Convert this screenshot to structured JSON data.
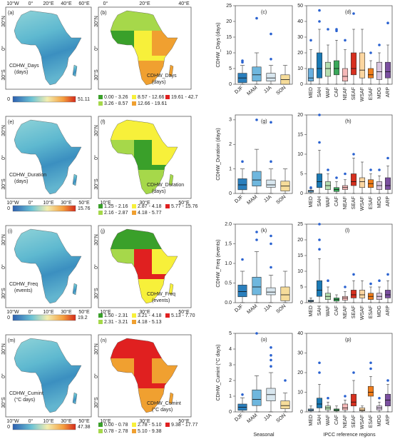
{
  "chart_data": [
    {
      "type": "map",
      "label": "(a)",
      "map_label": "CDHW_Days",
      "unit": "(days)",
      "colorbar_min": 0,
      "colorbar_max": 51.11,
      "lon_labels": [
        "10°W",
        "0°",
        "20°E",
        "40°E",
        "60°E"
      ],
      "lon_side": "top",
      "lat_labels": [
        "30°N",
        "0°",
        "30°S"
      ]
    },
    {
      "type": "choropleth",
      "label": "(b)",
      "map_label": "CDHW_Days",
      "unit": "(days)",
      "lon_labels": [
        "0°",
        "20°E",
        "40°E"
      ],
      "lon_side": "top",
      "lat_labels": [
        "30°N",
        "0°",
        "30°S"
      ],
      "legend": {
        "labels": [
          "0.00 - 3.26",
          "3.26 - 8.57",
          "8.57 - 12.66",
          "12.66 - 19.61",
          "19.61 - 42.7"
        ],
        "colors": [
          "#3aa02a",
          "#a6d84a",
          "#f7f03a",
          "#f0a030",
          "#e02020"
        ]
      }
    },
    {
      "type": "box",
      "label": "(c)",
      "ylabel": "CDHW_Days (days)",
      "categories": [
        "DJF",
        "MAM",
        "JJA",
        "SON"
      ],
      "colors": [
        "#2a7fbd",
        "#6fb7de",
        "#d8e6ee",
        "#f6dc9a"
      ],
      "ylim": [
        0,
        25
      ],
      "yticks": [
        0,
        5,
        10,
        15,
        20,
        25
      ],
      "boxes": [
        {
          "whislo": 0,
          "q1": 0.5,
          "med": 2,
          "q3": 3.5,
          "whishi": 6,
          "fliers": [
            7,
            7.5
          ]
        },
        {
          "whislo": 0,
          "q1": 1,
          "med": 3,
          "q3": 5.5,
          "whishi": 10,
          "fliers": [
            21
          ]
        },
        {
          "whislo": 0,
          "q1": 1,
          "med": 2,
          "q3": 3.5,
          "whishi": 6,
          "fliers": [
            8,
            16
          ]
        },
        {
          "whislo": 0,
          "q1": 0,
          "med": 1.5,
          "q3": 3,
          "whishi": 6,
          "fliers": []
        }
      ]
    },
    {
      "type": "box",
      "label": "(d)",
      "categories": [
        "MED",
        "SAH",
        "WAF",
        "CAF",
        "NEAF",
        "SEAF",
        "WSAF",
        "ESAF",
        "MDG",
        "ARP"
      ],
      "colors": [
        "#6ab0e0",
        "#1a7ab5",
        "#b5deb0",
        "#3aa85a",
        "#f5b8b8",
        "#d7301f",
        "#fcd6a0",
        "#f07c1a",
        "#d9c6e0",
        "#7b4fa0"
      ],
      "ylim": [
        0,
        50
      ],
      "yticks": [
        0,
        10,
        20,
        30,
        40,
        50
      ],
      "boxes": [
        {
          "whislo": 0,
          "q1": 2,
          "med": 4,
          "q3": 10,
          "whishi": 22,
          "fliers": [
            28
          ]
        },
        {
          "whislo": 0,
          "q1": 4,
          "med": 10,
          "q3": 20,
          "whishi": 35,
          "fliers": [
            40,
            47
          ]
        },
        {
          "whislo": 0,
          "q1": 5,
          "med": 10,
          "q3": 14,
          "whishi": 25,
          "fliers": [
            35
          ]
        },
        {
          "whislo": 0,
          "q1": 6,
          "med": 10,
          "q3": 15,
          "whishi": 28,
          "fliers": [
            34,
            35
          ]
        },
        {
          "whislo": 0,
          "q1": 2,
          "med": 5,
          "q3": 10,
          "whishi": 22,
          "fliers": [
            28
          ]
        },
        {
          "whislo": 0,
          "q1": 6,
          "med": 10,
          "q3": 20,
          "whishi": 35,
          "fliers": [
            45
          ]
        },
        {
          "whislo": 0,
          "q1": 4,
          "med": 9,
          "q3": 20,
          "whishi": 35,
          "fliers": []
        },
        {
          "whislo": 0,
          "q1": 4,
          "med": 6,
          "q3": 10,
          "whishi": 15,
          "fliers": [
            20
          ]
        },
        {
          "whislo": 0,
          "q1": 3,
          "med": 8,
          "q3": 14,
          "whishi": 20,
          "fliers": [
            25
          ]
        },
        {
          "whislo": 0,
          "q1": 4,
          "med": 8,
          "q3": 14,
          "whishi": 25,
          "fliers": [
            39
          ]
        }
      ]
    },
    {
      "type": "map",
      "label": "(e)",
      "map_label": "CDHW_Duration",
      "unit": "(days)",
      "colorbar_min": 0,
      "colorbar_max": 15.76,
      "lon_labels": [
        "10°W",
        "0°",
        "10°E",
        "30°E",
        "50°E"
      ],
      "lon_side": "bottom",
      "lat_labels": [
        "30°N",
        "0°",
        "30°S"
      ]
    },
    {
      "type": "choropleth",
      "label": "(f)",
      "map_label": "CDHW_Duration",
      "unit": "(days)",
      "lon_labels": [
        "10°E",
        "30°E",
        "50°E"
      ],
      "lon_side": "bottom",
      "lat_labels": [
        "30°N",
        "0°",
        "30°S"
      ],
      "legend": {
        "labels": [
          "1.25 - 2.16",
          "2.16 - 2.87",
          "2.87 - 4.18",
          "4.18 - 5.77",
          "5.77 - 15.76"
        ],
        "colors": [
          "#3aa02a",
          "#a6d84a",
          "#f7f03a",
          "#f0a030",
          "#e02020"
        ]
      }
    },
    {
      "type": "box",
      "label": "(g)",
      "ylabel": "CDHW_Duration (days)",
      "categories": [
        "DJF",
        "MAM",
        "JJA",
        "SON"
      ],
      "colors": [
        "#2a7fbd",
        "#6fb7de",
        "#d8e6ee",
        "#f6dc9a"
      ],
      "ylim": [
        0,
        3.2
      ],
      "yticks": [
        0,
        1,
        2,
        3
      ],
      "boxes": [
        {
          "whislo": 0,
          "q1": 0.15,
          "med": 0.35,
          "q3": 0.6,
          "whishi": 1,
          "fliers": [
            1.3
          ]
        },
        {
          "whislo": 0,
          "q1": 0.3,
          "med": 0.55,
          "q3": 0.9,
          "whishi": 1.8,
          "fliers": [
            3
          ]
        },
        {
          "whislo": 0,
          "q1": 0.25,
          "med": 0.35,
          "q3": 0.55,
          "whishi": 1,
          "fliers": [
            1.3,
            2.9
          ]
        },
        {
          "whislo": 0,
          "q1": 0.1,
          "med": 0.3,
          "q3": 0.5,
          "whishi": 1,
          "fliers": []
        }
      ]
    },
    {
      "type": "box",
      "label": "(h)",
      "categories": [
        "MED",
        "SAH",
        "WAF",
        "CAF",
        "NEAF",
        "SEAF",
        "WSAF",
        "ESAF",
        "MDG",
        "ARP"
      ],
      "colors": [
        "#6ab0e0",
        "#1a7ab5",
        "#b5deb0",
        "#3aa85a",
        "#f5b8b8",
        "#d7301f",
        "#fcd6a0",
        "#f07c1a",
        "#d9c6e0",
        "#7b4fa0"
      ],
      "ylim": [
        0,
        20
      ],
      "yticks": [
        0,
        5,
        10,
        15,
        20
      ],
      "boxes": [
        {
          "whislo": 0,
          "q1": 0.3,
          "med": 0.6,
          "q3": 0.8,
          "whishi": 1.2,
          "fliers": [
            1.5
          ]
        },
        {
          "whislo": 0,
          "q1": 1.5,
          "med": 3,
          "q3": 5,
          "whishi": 11,
          "fliers": [
            13,
            20
          ]
        },
        {
          "whislo": 0,
          "q1": 1,
          "med": 2,
          "q3": 3,
          "whishi": 5,
          "fliers": [
            6
          ]
        },
        {
          "whislo": 0,
          "q1": 0.5,
          "med": 1,
          "q3": 1.5,
          "whishi": 3,
          "fliers": [
            4
          ]
        },
        {
          "whislo": 0,
          "q1": 1,
          "med": 1.5,
          "q3": 2,
          "whishi": 3.5,
          "fliers": [
            5
          ]
        },
        {
          "whislo": 0,
          "q1": 2,
          "med": 3,
          "q3": 5,
          "whishi": 9,
          "fliers": [
            10
          ]
        },
        {
          "whislo": 0,
          "q1": 1.5,
          "med": 3,
          "q3": 4,
          "whishi": 8,
          "fliers": []
        },
        {
          "whislo": 0,
          "q1": 1.5,
          "med": 2.5,
          "q3": 3.5,
          "whishi": 5,
          "fliers": [
            6
          ]
        },
        {
          "whislo": 0,
          "q1": 1,
          "med": 2,
          "q3": 3,
          "whishi": 4.5,
          "fliers": [
            6
          ]
        },
        {
          "whislo": 0,
          "q1": 1,
          "med": 2,
          "q3": 4,
          "whishi": 7,
          "fliers": [
            9
          ]
        }
      ]
    },
    {
      "type": "map",
      "label": "(i)",
      "map_label": "CDHW_Freq",
      "unit": "(events)",
      "colorbar_min": 0,
      "colorbar_max": 19.2,
      "lon_labels": [
        "10°W",
        "0°",
        "10°E",
        "30°E",
        "50°E"
      ],
      "lon_side": "bottom",
      "lat_labels": [
        "30°N",
        "0°",
        "30°S"
      ]
    },
    {
      "type": "choropleth",
      "label": "(j)",
      "map_label": "CDHW_Freq",
      "unit": "(events)",
      "lon_labels": [
        "10°E",
        "30°E",
        "50°E"
      ],
      "lon_side": "bottom",
      "lat_labels": [
        "30°N",
        "0°",
        "30°S"
      ],
      "legend": {
        "labels": [
          "1.50 - 2.31",
          "2.31 - 3.21",
          "3.21 - 4.18",
          "4.18 - 5.13",
          "5.13 - 7.70"
        ],
        "colors": [
          "#3aa02a",
          "#a6d84a",
          "#f7f03a",
          "#f0a030",
          "#e02020"
        ]
      }
    },
    {
      "type": "box",
      "label": "(k)",
      "ylabel": "CDHW_Freq (events)",
      "categories": [
        "DJF",
        "MAM",
        "JJA",
        "SON"
      ],
      "colors": [
        "#2a7fbd",
        "#6fb7de",
        "#d8e6ee",
        "#f6dc9a"
      ],
      "ylim": [
        0,
        2
      ],
      "yticks": [
        {
          "value": 0,
          "label": "0.0"
        },
        0.5,
        {
          "value": 1,
          "label": "1.0"
        },
        1.5,
        {
          "value": 2,
          "label": "2.0"
        }
      ],
      "boxes": [
        {
          "whislo": 0,
          "q1": 0.15,
          "med": 0.28,
          "q3": 0.45,
          "whishi": 0.8,
          "fliers": [
            1.1
          ]
        },
        {
          "whislo": 0,
          "q1": 0.2,
          "med": 0.4,
          "q3": 0.65,
          "whishi": 1.3,
          "fliers": [
            1.6,
            1.8
          ]
        },
        {
          "whislo": 0,
          "q1": 0.2,
          "med": 0.27,
          "q3": 0.38,
          "whishi": 0.7,
          "fliers": [
            0.9,
            1.5,
            1.7
          ]
        },
        {
          "whislo": 0,
          "q1": 0.05,
          "med": 0.2,
          "q3": 0.4,
          "whishi": 0.8,
          "fliers": []
        }
      ]
    },
    {
      "type": "box",
      "label": "(l)",
      "categories": [
        "MED",
        "SAH",
        "WAF",
        "CAF",
        "NEAF",
        "SEAF",
        "WSAF",
        "ESAF",
        "MDG",
        "ARP"
      ],
      "colors": [
        "#6ab0e0",
        "#1a7ab5",
        "#b5deb0",
        "#3aa85a",
        "#f5b8b8",
        "#d7301f",
        "#fcd6a0",
        "#f07c1a",
        "#d9c6e0",
        "#7b4fa0"
      ],
      "ylim": [
        0,
        25
      ],
      "yticks": [
        0,
        5,
        10,
        15,
        20,
        25
      ],
      "boxes": [
        {
          "whislo": 0,
          "q1": 0.3,
          "med": 0.5,
          "q3": 0.8,
          "whishi": 1.5,
          "fliers": []
        },
        {
          "whislo": 0,
          "q1": 2,
          "med": 4,
          "q3": 7,
          "whishi": 14,
          "fliers": [
            17,
            20,
            25
          ]
        },
        {
          "whislo": 0,
          "q1": 1,
          "med": 2,
          "q3": 3,
          "whishi": 5,
          "fliers": [
            7
          ]
        },
        {
          "whislo": 0,
          "q1": 0.5,
          "med": 1,
          "q3": 1.5,
          "whishi": 2.5,
          "fliers": []
        },
        {
          "whislo": 0,
          "q1": 0.8,
          "med": 1.5,
          "q3": 2,
          "whishi": 3.5,
          "fliers": [
            5
          ]
        },
        {
          "whislo": 0,
          "q1": 1.5,
          "med": 2.5,
          "q3": 4,
          "whishi": 7,
          "fliers": [
            9
          ]
        },
        {
          "whislo": 0,
          "q1": 1.5,
          "med": 2.5,
          "q3": 4,
          "whishi": 7,
          "fliers": []
        },
        {
          "whislo": 0,
          "q1": 1,
          "med": 2,
          "q3": 3,
          "whishi": 5,
          "fliers": [
            6
          ]
        },
        {
          "whislo": 0,
          "q1": 1,
          "med": 2,
          "q3": 3,
          "whishi": 5,
          "fliers": [
            7
          ]
        },
        {
          "whislo": 0,
          "q1": 1.5,
          "med": 2.5,
          "q3": 4,
          "whishi": 7,
          "fliers": [
            9
          ]
        }
      ]
    },
    {
      "type": "map",
      "label": "(m)",
      "map_label": "CDHW_Cumint",
      "unit": "(°C days)",
      "colorbar_min": 0,
      "colorbar_max": 47.38,
      "lon_labels": [
        "10°W",
        "0°",
        "10°E",
        "30°E",
        "50°E"
      ],
      "lon_side": "bottom",
      "lat_labels": [
        "30°N",
        "0°",
        "30°S"
      ]
    },
    {
      "type": "choropleth",
      "label": "(n)",
      "map_label": "CDHW_Cumint",
      "unit": "(°C days)",
      "lon_labels": [
        "10°E",
        "30°E",
        "50°E"
      ],
      "lon_side": "bottom",
      "lat_labels": [
        "30°N",
        "0°",
        "30°S"
      ],
      "legend": {
        "labels": [
          "0.00 - 0.78",
          "0.78 - 2.78",
          "2.78 - 5.10",
          "5.10 - 9.38",
          "9.38 - 17.77"
        ],
        "colors": [
          "#3aa02a",
          "#a6d84a",
          "#f7f03a",
          "#f0a030",
          "#e02020"
        ]
      }
    },
    {
      "type": "box",
      "label": "(o)",
      "ylabel": "CDHW_Cumint (°C days)",
      "xlabel": "Seasonal",
      "categories": [
        "DJF",
        "MAM",
        "JJA",
        "SON"
      ],
      "colors": [
        "#2a7fbd",
        "#6fb7de",
        "#d8e6ee",
        "#f6dc9a"
      ],
      "ylim": [
        0,
        5
      ],
      "yticks": [
        0,
        1,
        2,
        3,
        4,
        5
      ],
      "boxes": [
        {
          "whislo": 0,
          "q1": 0.1,
          "med": 0.3,
          "q3": 0.5,
          "whishi": 0.9,
          "fliers": [
            1.1
          ]
        },
        {
          "whislo": 0,
          "q1": 0.4,
          "med": 0.8,
          "q3": 1.4,
          "whishi": 2.3,
          "fliers": [
            5
          ]
        },
        {
          "whislo": 0,
          "q1": 0.7,
          "med": 1.1,
          "q3": 1.5,
          "whishi": 2.5,
          "fliers": [
            2.9,
            3.3,
            3.6,
            4.1
          ]
        },
        {
          "whislo": 0,
          "q1": 0.2,
          "med": 0.4,
          "q3": 0.7,
          "whishi": 1.2,
          "fliers": [
            2
          ]
        }
      ]
    },
    {
      "type": "box",
      "label": "(p)",
      "xlabel": "IPCC reference regions",
      "categories": [
        "MED",
        "SAH",
        "WAF",
        "CAF",
        "NEAF",
        "SEAF",
        "WSAF",
        "ESAF",
        "MDG",
        "ARP"
      ],
      "colors": [
        "#6ab0e0",
        "#1a7ab5",
        "#b5deb0",
        "#3aa85a",
        "#f5b8b8",
        "#d7301f",
        "#fcd6a0",
        "#f07c1a",
        "#d9c6e0",
        "#7b4fa0"
      ],
      "ylim": [
        0,
        40
      ],
      "yticks": [
        0,
        10,
        20,
        30,
        40
      ],
      "boxes": [
        {
          "whislo": 0,
          "q1": 0.5,
          "med": 1,
          "q3": 1.5,
          "whishi": 3,
          "fliers": []
        },
        {
          "whislo": 0,
          "q1": 2,
          "med": 4,
          "q3": 7,
          "whishi": 14,
          "fliers": [
            20,
            25
          ]
        },
        {
          "whislo": 0,
          "q1": 1,
          "med": 2,
          "q3": 3,
          "whishi": 5,
          "fliers": [
            7
          ]
        },
        {
          "whislo": 0,
          "q1": 0.5,
          "med": 1,
          "q3": 1.5,
          "whishi": 3,
          "fliers": []
        },
        {
          "whislo": 0,
          "q1": 1,
          "med": 2,
          "q3": 4,
          "whishi": 6,
          "fliers": [
            8
          ]
        },
        {
          "whislo": 0,
          "q1": 3,
          "med": 5,
          "q3": 9,
          "whishi": 16,
          "fliers": [
            20
          ]
        },
        {
          "whislo": 0,
          "q1": 0.5,
          "med": 1,
          "q3": 2,
          "whishi": 3,
          "fliers": []
        },
        {
          "whislo": 0,
          "q1": 8,
          "med": 10,
          "q3": 13,
          "whishi": 18,
          "fliers": [
            22,
            25
          ]
        },
        {
          "whislo": 0,
          "q1": 1,
          "med": 2,
          "q3": 3,
          "whishi": 5,
          "fliers": [
            7
          ]
        },
        {
          "whislo": 0,
          "q1": 3,
          "med": 6,
          "q3": 9,
          "whishi": 14,
          "fliers": [
            16
          ]
        }
      ]
    }
  ]
}
